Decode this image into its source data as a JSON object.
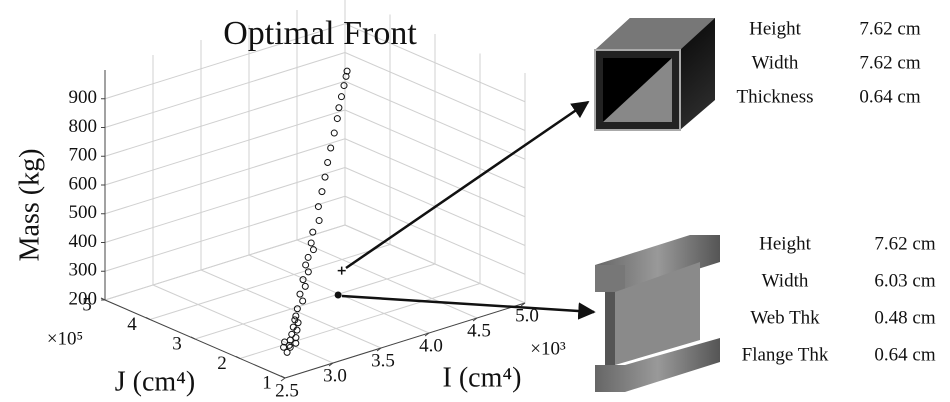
{
  "chart_data": {
    "type": "scatter3d",
    "title": "Optimal Front",
    "xlabel": "I (cm⁴)",
    "ylabel": "J (cm⁴)",
    "zlabel": "Mass (kg)",
    "xmultiplier": "×10³",
    "ymultiplier": "×10⁵",
    "xlim": [
      2.5,
      5.0
    ],
    "ylim": [
      1,
      5
    ],
    "zlim": [
      200,
      1000
    ],
    "xticks": [
      2.5,
      {
        "value": 3,
        "label": "3.0"
      },
      3.5,
      {
        "value": 4,
        "label": "4.0"
      },
      4.5,
      {
        "value": 5,
        "label": "5.0"
      }
    ],
    "yticks": [
      1,
      2,
      3,
      4,
      5
    ],
    "zticks": [
      200,
      300,
      400,
      500,
      600,
      700,
      800,
      900
    ],
    "grid": true,
    "color": "#111111",
    "x": [
      2.85,
      2.92,
      2.86,
      2.9,
      2.95,
      2.88,
      2.92,
      2.97,
      2.95,
      3.0,
      2.98,
      3.03,
      3.01,
      3.03,
      3.06,
      3.12,
      3.12,
      3.18,
      3.18,
      3.24,
      3.24,
      3.28,
      3.34,
      3.34,
      3.38,
      3.46,
      3.49,
      3.56,
      3.62,
      3.68,
      3.74,
      3.81,
      3.87,
      3.91,
      3.96,
      4.01,
      4.05,
      4.07
    ],
    "y": [
      1.7,
      1.78,
      1.8,
      1.76,
      1.72,
      1.82,
      1.78,
      1.76,
      1.81,
      1.8,
      1.84,
      1.84,
      1.87,
      1.89,
      1.92,
      1.93,
      1.99,
      2.0,
      2.05,
      2.06,
      2.12,
      2.15,
      2.16,
      2.21,
      2.26,
      2.29,
      2.37,
      2.44,
      2.5,
      2.57,
      2.63,
      2.7,
      2.76,
      2.81,
      2.86,
      2.91,
      2.95,
      2.97
    ],
    "z": [
      205,
      210,
      215,
      220,
      225,
      230,
      235,
      240,
      250,
      260,
      270,
      280,
      290,
      300,
      320,
      340,
      360,
      380,
      400,
      420,
      440,
      460,
      480,
      500,
      530,
      560,
      600,
      640,
      680,
      720,
      760,
      800,
      840,
      870,
      900,
      930,
      955,
      970
    ],
    "selected_points": {
      "x": [
        3.7,
        3.78
      ],
      "y": [
        2.3,
        2.55
      ],
      "z": [
        360,
        250
      ],
      "markers": [
        "plus",
        "dot"
      ]
    }
  },
  "specs": [
    {
      "rows": [
        {
          "label": "Height",
          "value": "7.62 cm"
        },
        {
          "label": "Width",
          "value": "7.62 cm"
        },
        {
          "label": "Thickness",
          "value": "0.64 cm"
        }
      ]
    },
    {
      "rows": [
        {
          "label": "Height",
          "value": "7.62 cm"
        },
        {
          "label": "Width",
          "value": "6.03 cm"
        },
        {
          "label": "Web Thk",
          "value": "0.48 cm"
        },
        {
          "label": "Flange Thk",
          "value": "0.64 cm"
        }
      ]
    }
  ]
}
